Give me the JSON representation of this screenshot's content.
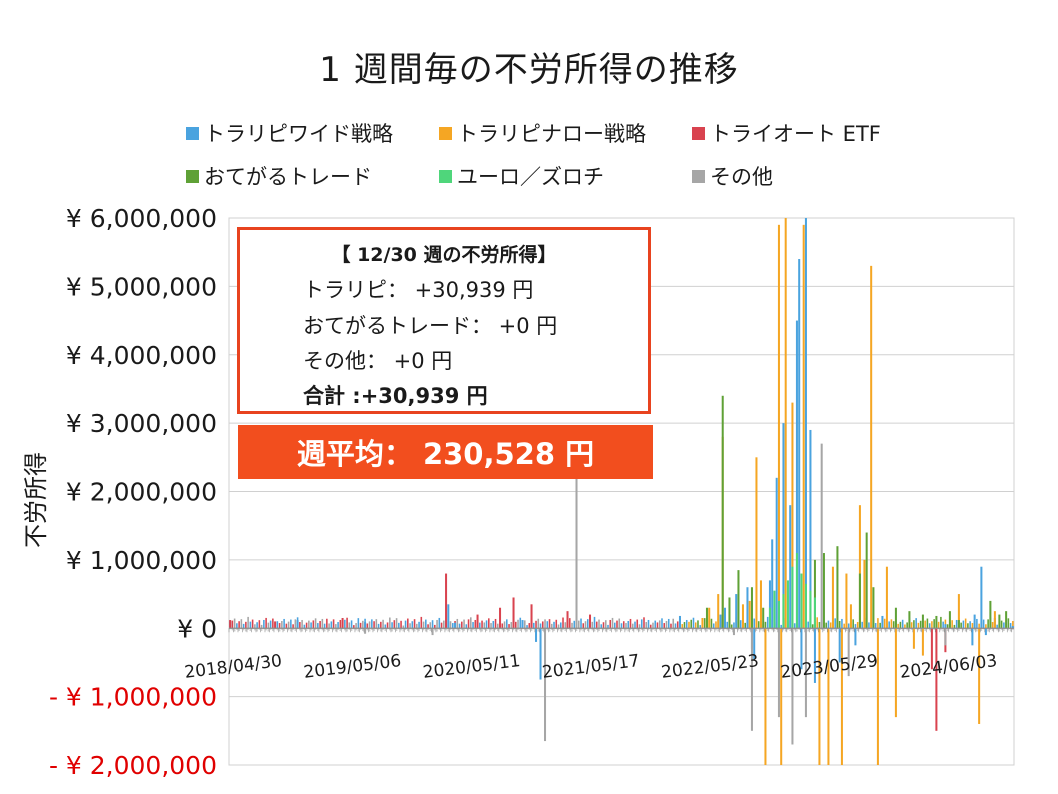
{
  "title": "1 週間毎の不労所得の推移",
  "legend": [
    {
      "label": "トラリピワイド戦略",
      "color": "#4aa3df"
    },
    {
      "label": "トラリピナロー戦略",
      "color": "#f5a623"
    },
    {
      "label": "トライオート ETF",
      "color": "#d9434f"
    },
    {
      "label": "おてがるトレード",
      "color": "#5fa136"
    },
    {
      "label": "ユーロ／ズロチ",
      "color": "#4fd67b"
    },
    {
      "label": "その他",
      "color": "#a6a6a6"
    }
  ],
  "info_box": {
    "title": "【 12/30 週の不労所得】",
    "lines": [
      "トラリピ： +30,939 円",
      "おてがるトレード： +0 円",
      "その他： +0 円"
    ],
    "total": "合計 :+30,939 円"
  },
  "average": "週平均： 230,528 円",
  "chart_data": {
    "type": "bar",
    "stacked": true,
    "ylabel": "不労所得",
    "ylim": [
      -2000000,
      6000000
    ],
    "ytick_labels": [
      {
        "value": 6000000,
        "label": "¥ 6,000,000"
      },
      {
        "value": 5000000,
        "label": "¥ 5,000,000"
      },
      {
        "value": 4000000,
        "label": "¥ 4,000,000"
      },
      {
        "value": 3000000,
        "label": "¥ 3,000,000"
      },
      {
        "value": 2000000,
        "label": "¥ 2,000,000"
      },
      {
        "value": 1000000,
        "label": "¥ 1,000,000"
      },
      {
        "value": 0,
        "label": "¥ 0"
      },
      {
        "value": -1000000,
        "label": "- ¥ 1,000,000"
      },
      {
        "value": -2000000,
        "label": "- ¥ 2,000,000"
      }
    ],
    "negative_tick_color": "#e00000",
    "xtick_labels": [
      "2018/04/30",
      "2019/05/06",
      "2020/05/11",
      "2021/05/17",
      "2022/05/23",
      "2023/05/29",
      "2024/06/03"
    ],
    "xtick_week_index": [
      0,
      53,
      106,
      159,
      212,
      265,
      318
    ],
    "total_weeks": 349,
    "grid": true,
    "series": [
      {
        "name": "トラリピワイド戦略",
        "points": [
          [
            0,
            100000
          ],
          [
            30,
            120000
          ],
          [
            60,
            90000
          ],
          [
            97,
            350000
          ],
          [
            100,
            80000
          ],
          [
            130,
            120000
          ],
          [
            136,
            -200000
          ],
          [
            138,
            -750000
          ],
          [
            150,
            100000
          ],
          [
            200,
            180000
          ],
          [
            218,
            200000
          ],
          [
            220,
            300000
          ],
          [
            225,
            500000
          ],
          [
            230,
            600000
          ],
          [
            232,
            -300000
          ],
          [
            233,
            -450000
          ],
          [
            240,
            700000
          ],
          [
            241,
            1300000
          ],
          [
            243,
            2200000
          ],
          [
            246,
            3000000
          ],
          [
            249,
            1800000
          ],
          [
            252,
            4500000
          ],
          [
            253,
            5400000
          ],
          [
            254,
            -600000
          ],
          [
            256,
            6000000
          ],
          [
            258,
            2900000
          ],
          [
            260,
            -800000
          ],
          [
            271,
            -500000
          ],
          [
            278,
            -250000
          ],
          [
            290,
            180000
          ],
          [
            318,
            60000
          ],
          [
            330,
            -250000
          ],
          [
            331,
            200000
          ],
          [
            334,
            900000
          ],
          [
            336,
            -100000
          ],
          [
            340,
            150000
          ],
          [
            348,
            30939
          ]
        ]
      },
      {
        "name": "トラリピナロー戦略",
        "points": [
          [
            210,
            150000
          ],
          [
            213,
            300000
          ],
          [
            217,
            500000
          ],
          [
            219,
            2800000
          ],
          [
            228,
            350000
          ],
          [
            231,
            400000
          ],
          [
            234,
            2500000
          ],
          [
            236,
            700000
          ],
          [
            238,
            -2000000
          ],
          [
            244,
            5900000
          ],
          [
            245,
            -2000000
          ],
          [
            247,
            6000000
          ],
          [
            250,
            3300000
          ],
          [
            255,
            5900000
          ],
          [
            262,
            -2000000
          ],
          [
            266,
            -2000000
          ],
          [
            268,
            900000
          ],
          [
            272,
            -2000000
          ],
          [
            274,
            800000
          ],
          [
            276,
            350000
          ],
          [
            280,
            1800000
          ],
          [
            282,
            1000000
          ],
          [
            285,
            5300000
          ],
          [
            288,
            -2000000
          ],
          [
            292,
            900000
          ],
          [
            296,
            -1300000
          ],
          [
            304,
            -300000
          ],
          [
            308,
            -400000
          ],
          [
            324,
            500000
          ],
          [
            333,
            -1400000
          ],
          [
            340,
            250000
          ]
        ]
      },
      {
        "name": "トライオート ETF",
        "points": [
          [
            0,
            120000
          ],
          [
            20,
            100000
          ],
          [
            50,
            150000
          ],
          [
            96,
            800000
          ],
          [
            110,
            200000
          ],
          [
            120,
            300000
          ],
          [
            126,
            450000
          ],
          [
            134,
            350000
          ],
          [
            150,
            250000
          ],
          [
            160,
            200000
          ],
          [
            312,
            -600000
          ],
          [
            314,
            -1500000
          ],
          [
            318,
            -350000
          ]
        ]
      },
      {
        "name": "おてがるトレード",
        "points": [
          [
            212,
            300000
          ],
          [
            219,
            3400000
          ],
          [
            222,
            450000
          ],
          [
            226,
            850000
          ],
          [
            232,
            600000
          ],
          [
            237,
            300000
          ],
          [
            260,
            1000000
          ],
          [
            264,
            1100000
          ],
          [
            270,
            1200000
          ],
          [
            280,
            800000
          ],
          [
            283,
            1400000
          ],
          [
            286,
            600000
          ],
          [
            296,
            300000
          ],
          [
            302,
            250000
          ],
          [
            308,
            200000
          ],
          [
            314,
            180000
          ],
          [
            320,
            250000
          ],
          [
            324,
            120000
          ],
          [
            338,
            400000
          ],
          [
            342,
            200000
          ],
          [
            345,
            250000
          ]
        ]
      },
      {
        "name": "ユーロ／ズロチ",
        "points": [
          [
            240,
            300000
          ],
          [
            242,
            550000
          ],
          [
            244,
            400000
          ],
          [
            246,
            500000
          ],
          [
            248,
            700000
          ],
          [
            250,
            900000
          ],
          [
            252,
            1100000
          ],
          [
            254,
            800000
          ],
          [
            256,
            650000
          ],
          [
            258,
            550000
          ],
          [
            260,
            450000
          ]
        ]
      },
      {
        "name": "その他",
        "points": [
          [
            60,
            -80000
          ],
          [
            90,
            -100000
          ],
          [
            140,
            -1650000
          ],
          [
            154,
            2200000
          ],
          [
            224,
            -100000
          ],
          [
            232,
            -1500000
          ],
          [
            244,
            -1300000
          ],
          [
            250,
            -1700000
          ],
          [
            256,
            -1300000
          ],
          [
            263,
            2700000
          ],
          [
            275,
            -700000
          ],
          [
            318,
            -250000
          ]
        ]
      }
    ]
  }
}
